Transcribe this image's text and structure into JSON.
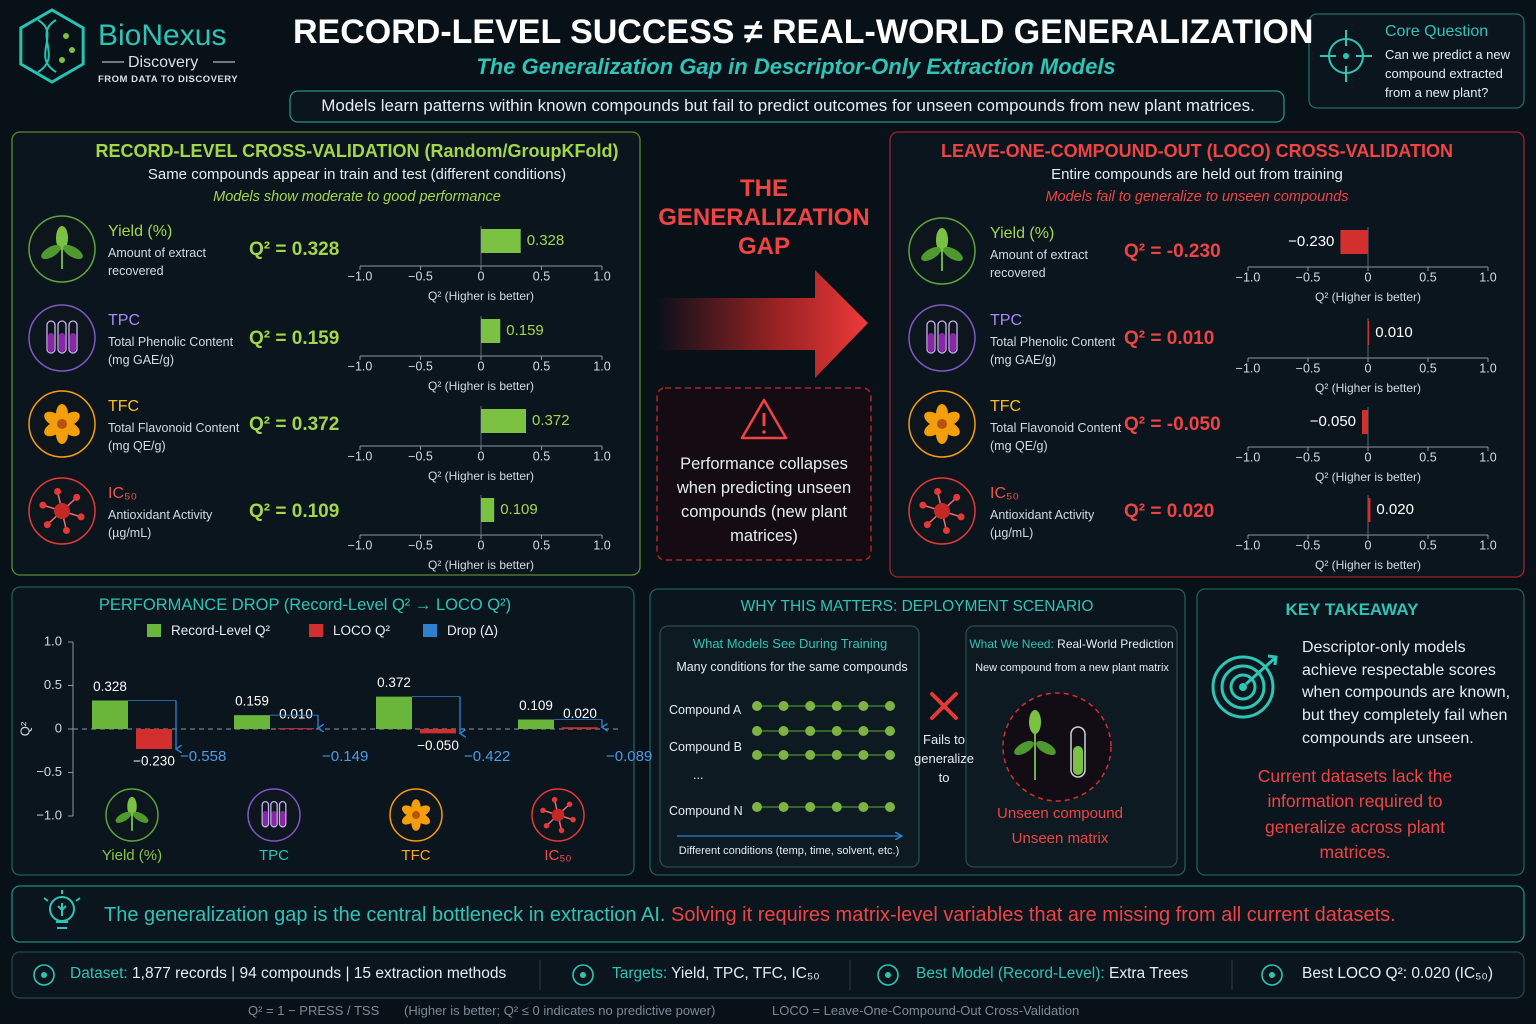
{
  "logo": {
    "name": "BioNexus",
    "sub": "Discovery",
    "tagline": "FROM DATA TO DISCOVERY"
  },
  "header": {
    "title": "RECORD-LEVEL SUCCESS ≠ REAL-WORLD GENERALIZATION",
    "subtitle": "The Generalization Gap in Descriptor-Only Extraction Models",
    "summary": "Models learn patterns within known compounds but fail to predict outcomes for unseen compounds from new plant matrices."
  },
  "core_question": {
    "title": "Core Question",
    "text": "Can we predict a new compound extracted from a new plant?"
  },
  "record_panel": {
    "title": "RECORD-LEVEL CROSS-VALIDATION (Random/GroupKFold)",
    "subtitle": "Same compounds appear in train and test (different conditions)",
    "note": "Models show moderate to good performance",
    "type": "bar",
    "color": "#7cc242",
    "xlim": [
      -1,
      1
    ],
    "xticks": [
      {
        "value": -1,
        "label": "−1.0"
      },
      {
        "value": -0.5,
        "label": "−0.5"
      },
      0,
      0.5,
      {
        "value": 1,
        "label": "1.0"
      }
    ],
    "xlabel": "Q² (Higher is better)",
    "rows": [
      {
        "name": "Yield (%)",
        "description": "Amount of extract recovered",
        "q2_text": "Q² = 0.328",
        "value": 0.328
      },
      {
        "name": "TPC",
        "description": "Total Phenolic Content (mg GAE/g)",
        "q2_text": "Q² = 0.159",
        "value": 0.159
      },
      {
        "name": "TFC",
        "description": "Total Flavonoid Content (mg QE/g)",
        "q2_text": "Q² = 0.372",
        "value": 0.372
      },
      {
        "name": "IC₅₀",
        "description": "Antioxidant Activity (µg/mL)",
        "q2_text": "Q² = 0.109",
        "value": 0.109
      }
    ]
  },
  "gap": {
    "title": [
      "THE",
      "GENERALIZATION",
      "GAP"
    ],
    "warning": "Performance collapses when predicting unseen compounds (new plant matrices)"
  },
  "loco_panel": {
    "title": "LEAVE-ONE-COMPOUND-OUT (LOCO) CROSS-VALIDATION",
    "subtitle": "Entire compounds are held out from training",
    "note": "Models fail to generalize to unseen compounds",
    "type": "bar",
    "color": "#d32f2f",
    "xlim": [
      -1,
      1
    ],
    "xticks": [
      {
        "value": -1,
        "label": "−1.0"
      },
      {
        "value": -0.5,
        "label": "−0.5"
      },
      0,
      0.5,
      {
        "value": 1,
        "label": "1.0"
      }
    ],
    "xlabel": "Q² (Higher is better)",
    "rows": [
      {
        "name": "Yield (%)",
        "description": "Amount of extract recovered",
        "q2_text": "Q² = -0.230",
        "value": -0.23,
        "value_label": "−0.230"
      },
      {
        "name": "TPC",
        "description": "Total Phenolic Content (mg GAE/g)",
        "q2_text": "Q² = 0.010",
        "value": 0.01,
        "value_label": "0.010"
      },
      {
        "name": "TFC",
        "description": "Total Flavonoid Content (mg QE/g)",
        "q2_text": "Q² = -0.050",
        "value": -0.05,
        "value_label": "−0.050"
      },
      {
        "name": "IC₅₀",
        "description": "Antioxidant Activity (µg/mL)",
        "q2_text": "Q² = 0.020",
        "value": 0.02,
        "value_label": "0.020"
      }
    ]
  },
  "drop_panel": {
    "type": "bar",
    "title": "PERFORMANCE DROP (Record-Level Q² → LOCO Q²)",
    "categories": [
      "Yield (%)",
      "TPC",
      "TFC",
      "IC₅₀"
    ],
    "category_colors": [
      "#8bc34a",
      "#26c6b4",
      "#ffa726",
      "#ef5350"
    ],
    "series": [
      {
        "name": "Record-Level Q²",
        "color": "#6ab63b",
        "values": [
          0.328,
          0.159,
          0.372,
          0.109
        ]
      },
      {
        "name": "LOCO Q²",
        "color": "#d32f2f",
        "values": [
          -0.23,
          0.01,
          -0.05,
          0.02
        ],
        "value_labels": [
          "−0.230",
          "0.010",
          "−0.050",
          "0.020"
        ]
      },
      {
        "name": "Drop (Δ)",
        "color": "#2f80d1",
        "values": [
          -0.558,
          -0.149,
          -0.422,
          -0.089
        ],
        "value_labels": [
          "−0.558",
          "−0.149",
          "−0.422",
          "−0.089"
        ]
      }
    ],
    "ylim": [
      -1,
      1
    ],
    "yticks": [
      {
        "value": 1,
        "label": "1.0"
      },
      0.5,
      0,
      {
        "value": -0.5,
        "label": "−0.5"
      },
      {
        "value": -1,
        "label": "−1.0"
      }
    ],
    "ylabel": "Q²"
  },
  "deployment": {
    "title": "WHY THIS MATTERS: DEPLOYMENT SCENARIO",
    "training": {
      "title": "What Models See During Training",
      "subtitle": "Many conditions for the same compounds",
      "rows": [
        "Compound A",
        "Compound B",
        "...",
        "Compound N"
      ],
      "axis": "Different conditions (temp, time, solvent, etc.)"
    },
    "fails": "Fails to generalize to",
    "need": {
      "label": "What We Need:",
      "title": "Real-World Prediction",
      "subtitle": "New compound from a new plant matrix",
      "lines": [
        "Unseen compound",
        "Unseen matrix"
      ]
    }
  },
  "takeaway": {
    "title": "KEY TAKEAWAY",
    "text": "Descriptor-only models achieve respectable scores when compounds are known, but they completely fail when compounds are unseen.",
    "highlight": "Current datasets lack the information required to generalize across plant matrices."
  },
  "banner": {
    "lead": "The generalization gap is the central bottleneck in extraction AI.",
    "rest": "Solving it requires matrix-level variables that are missing from all current datasets."
  },
  "footer": {
    "items": [
      {
        "label": "Dataset:",
        "text": "1,877 records | 94 compounds | 15 extraction methods"
      },
      {
        "label": "Targets:",
        "text": "Yield, TPC, TFC, IC₅₀"
      },
      {
        "label": "Best Model (Record-Level):",
        "text": "Extra Trees"
      },
      {
        "label": "Best LOCO Q²:",
        "text": "0.020 (IC₅₀)"
      }
    ],
    "notes": [
      "Q² = 1 − PRESS / TSS",
      "(Higher is better; Q² ≤ 0 indicates no predictive power)",
      "LOCO = Leave-One-Compound-Out Cross-Validation"
    ]
  }
}
